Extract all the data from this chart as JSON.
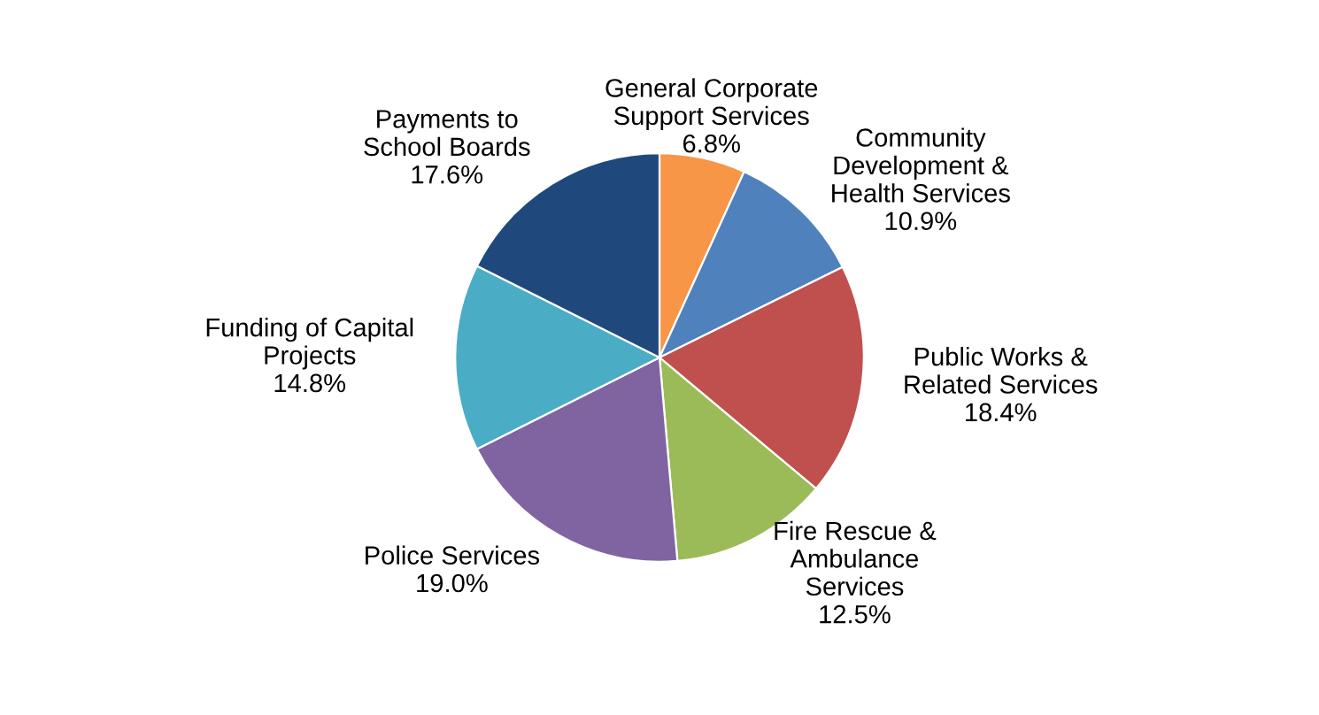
{
  "chart_data": {
    "type": "pie",
    "categories": [
      "General Corporate\nSupport Services",
      "Community\nDevelopment &\nHealth Services",
      "Public Works &\nRelated Services",
      "Fire Rescue &\nAmbulance\nServices",
      "Police Services",
      "Funding of Capital\nProjects",
      "Payments to\nSchool Boards"
    ],
    "values": [
      6.8,
      10.9,
      18.4,
      12.5,
      19.0,
      14.8,
      17.6
    ],
    "value_labels": [
      "6.8%",
      "10.9%",
      "18.4%",
      "12.5%",
      "19.0%",
      "14.8%",
      "17.6%"
    ],
    "colors": [
      "#f79646",
      "#4f81bd",
      "#c0504d",
      "#9bbb59",
      "#8064a2",
      "#4bacc6",
      "#1f497d"
    ],
    "legend": false
  }
}
